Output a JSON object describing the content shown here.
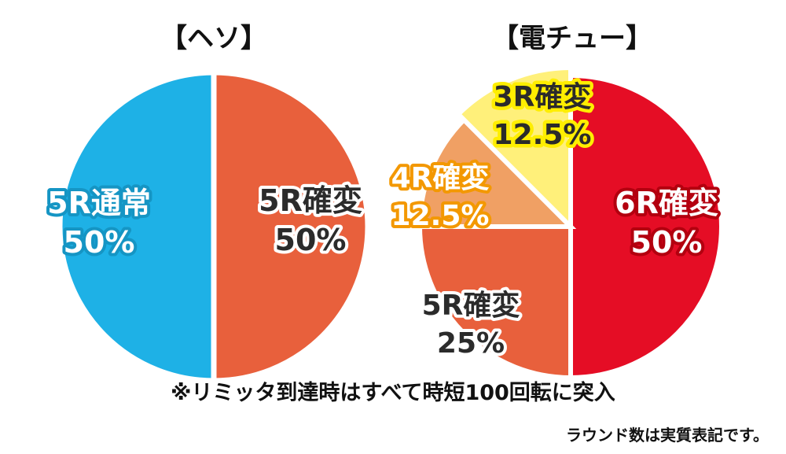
{
  "colors": {
    "blue": "#1eb1e6",
    "orange": "#e8603c",
    "light_orange": "#f0a064",
    "yellow": "#fff07a",
    "red": "#e50d25",
    "label_yellow_fill": "#2b2b2b",
    "label_yellow_stroke": "#ffee00",
    "label_orange_stroke": "#f39800"
  },
  "chart_data": [
    {
      "type": "pie",
      "title": "【ヘソ】",
      "slices": [
        {
          "name": "5R通常",
          "value": 50,
          "value_label": "50%",
          "color": "#1eb1e6"
        },
        {
          "name": "5R確変",
          "value": 50,
          "value_label": "50%",
          "color": "#e8603c"
        }
      ]
    },
    {
      "type": "pie",
      "title": "【電チュー】",
      "slices": [
        {
          "name": "6R確変",
          "value": 50,
          "value_label": "50%",
          "color": "#e50d25"
        },
        {
          "name": "5R確変",
          "value": 25,
          "value_label": "25%",
          "color": "#e8603c"
        },
        {
          "name": "4R確変",
          "value": 12.5,
          "value_label": "12.5%",
          "color": "#f0a064"
        },
        {
          "name": "3R確変",
          "value": 12.5,
          "value_label": "12.5%",
          "color": "#fff07a"
        }
      ]
    }
  ],
  "footnote": "※リミッタ到達時はすべて時短100回転に突入",
  "note": "ラウンド数は実質表記です。"
}
